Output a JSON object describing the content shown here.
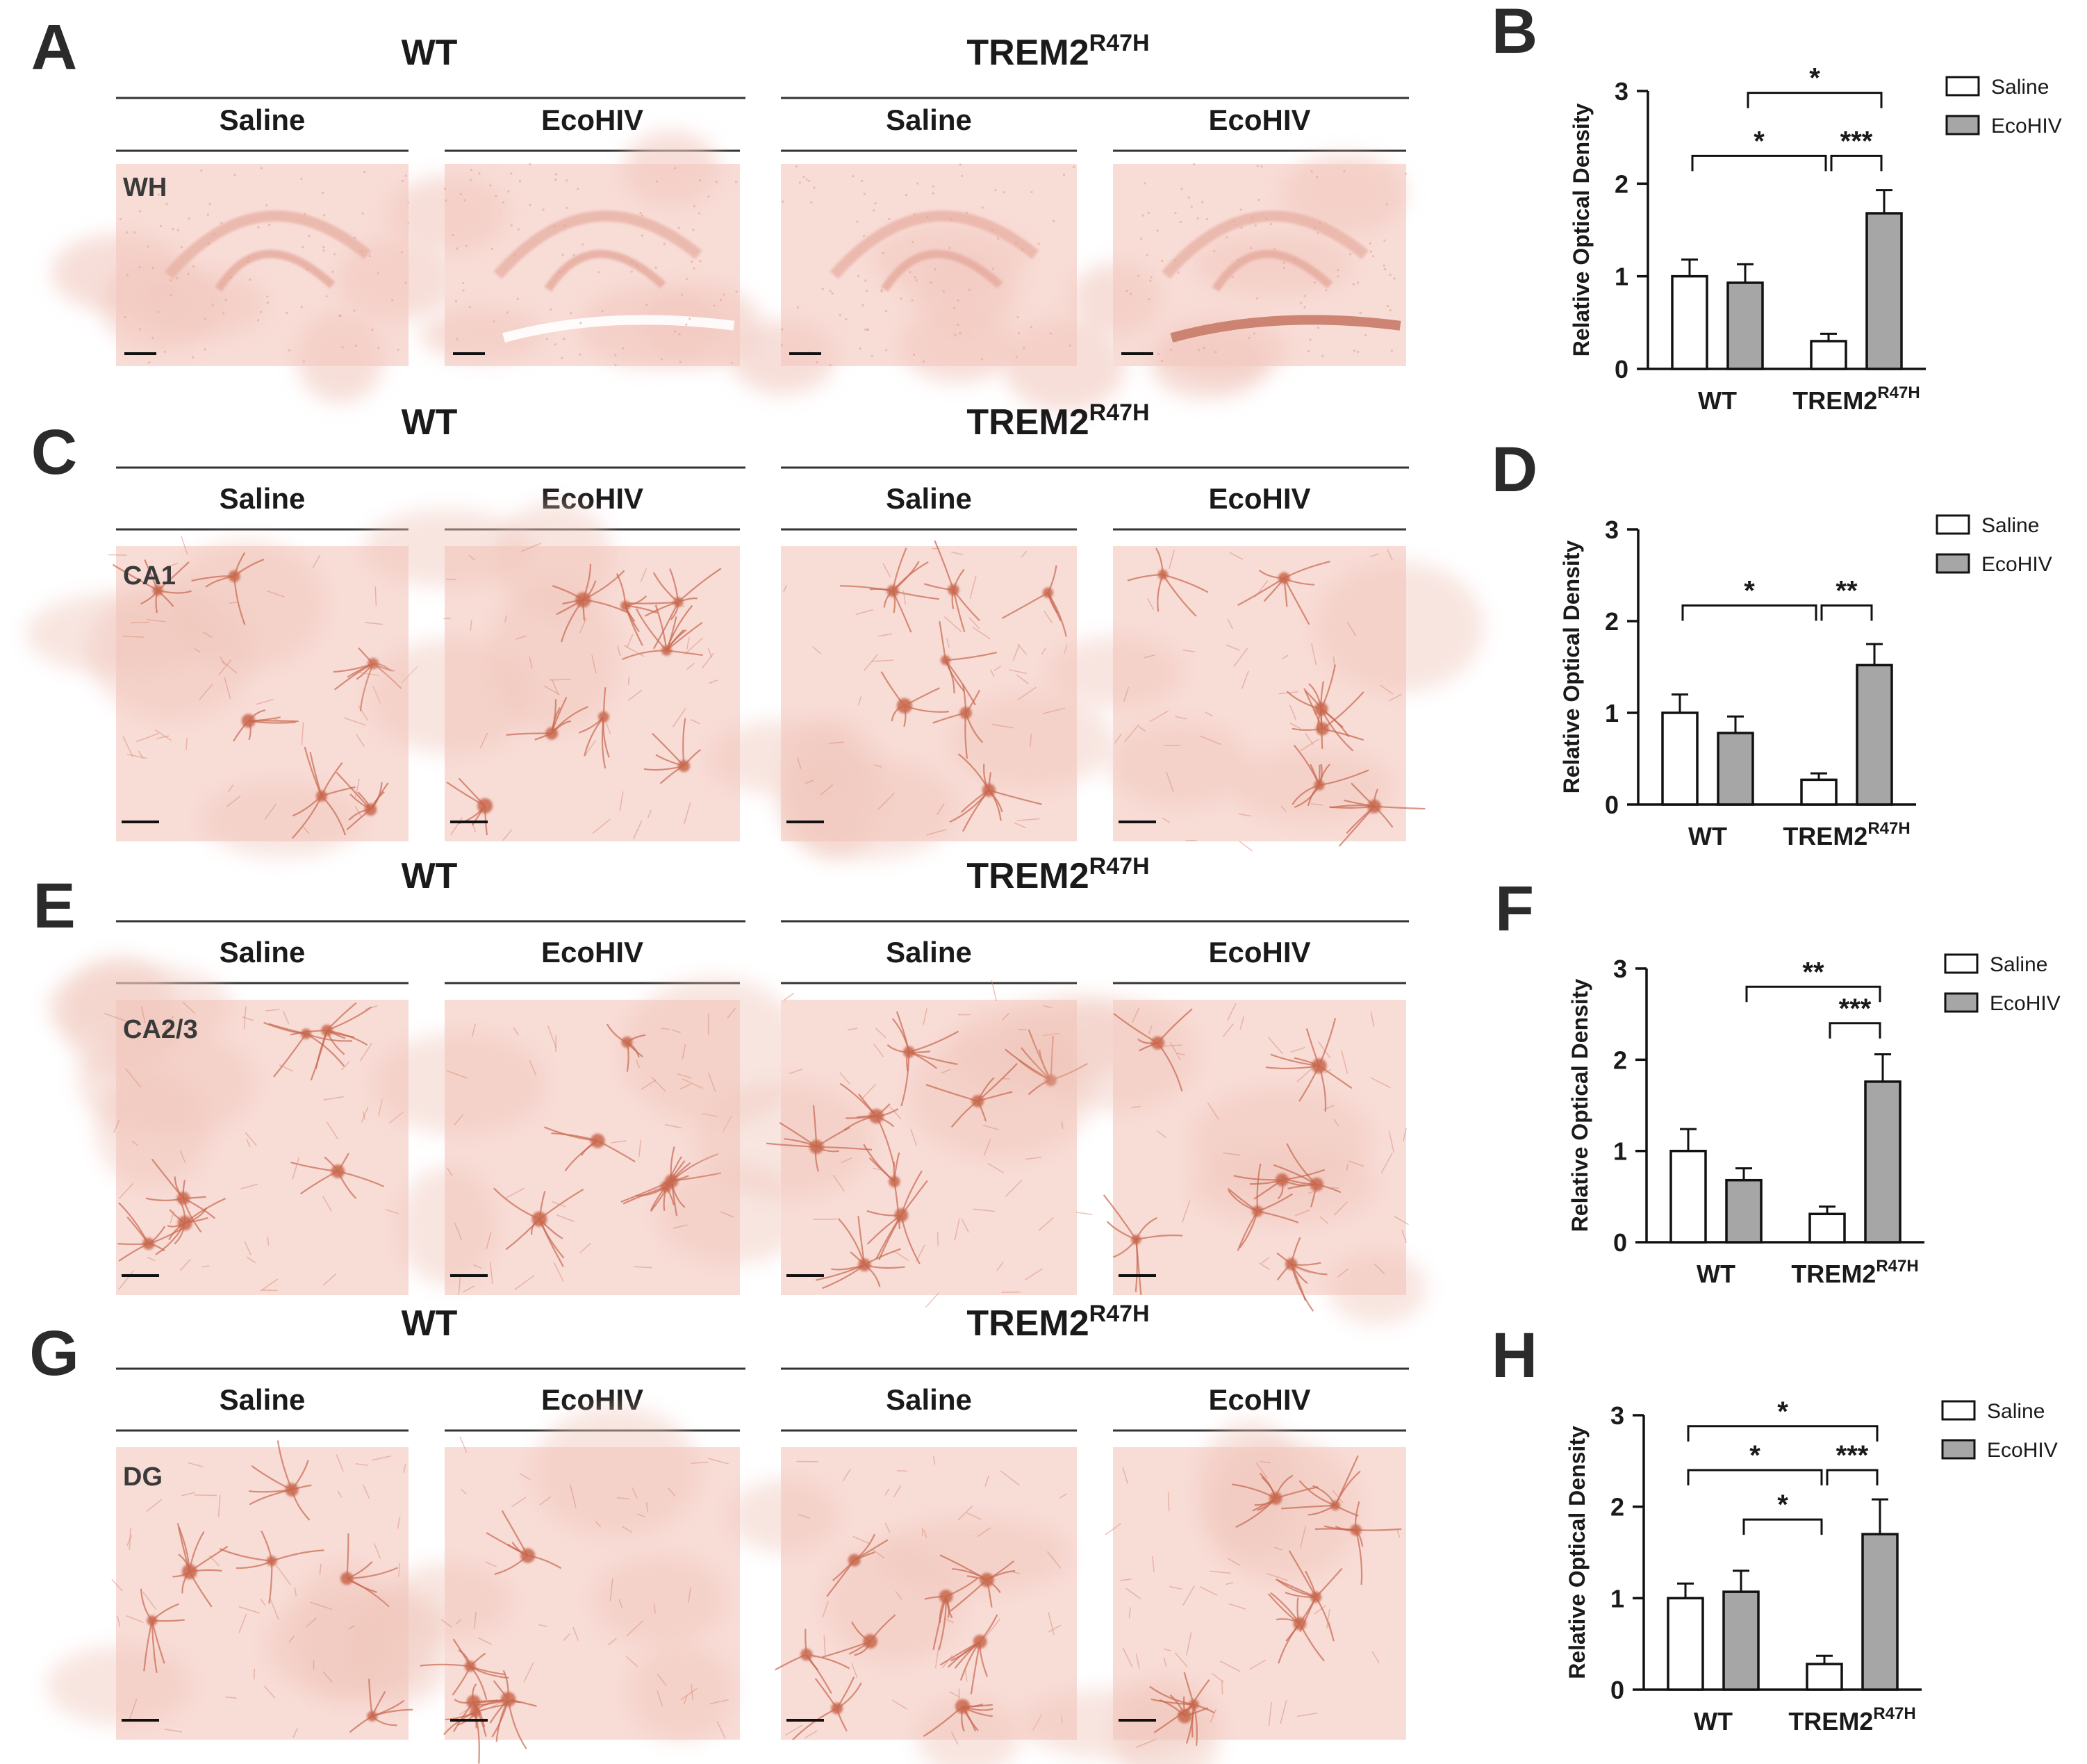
{
  "rows": [
    {
      "image_panel_letter": "A",
      "group_left": "WT",
      "group_right_base": "TREM2",
      "group_right_sup": "R47H",
      "conditions": [
        "Saline",
        "EcoHIV",
        "Saline",
        "EcoHIV"
      ],
      "region_label": "WH",
      "chart_panel_letter": "B"
    },
    {
      "image_panel_letter": "C",
      "group_left": "WT",
      "group_right_base": "TREM2",
      "group_right_sup": "R47H",
      "conditions": [
        "Saline",
        "EcoHIV",
        "Saline",
        "EcoHIV"
      ],
      "region_label": "CA1",
      "chart_panel_letter": "D"
    },
    {
      "image_panel_letter": "E",
      "group_left": "WT",
      "group_right_base": "TREM2",
      "group_right_sup": "R47H",
      "conditions": [
        "Saline",
        "EcoHIV",
        "Saline",
        "EcoHIV"
      ],
      "region_label": "CA2/3",
      "chart_panel_letter": "F"
    },
    {
      "image_panel_letter": "G",
      "group_left": "WT",
      "group_right_base": "TREM2",
      "group_right_sup": "R47H",
      "conditions": [
        "Saline",
        "EcoHIV",
        "Saline",
        "EcoHIV"
      ],
      "region_label": "DG",
      "chart_panel_letter": "H"
    }
  ],
  "colors": {
    "saline_bar": "#ffffff",
    "ecohiv_bar": "#a6a6a6",
    "tissue_base": "#f8dcd6",
    "stain": "#c8674e"
  },
  "chart_data": [
    {
      "type": "bar",
      "panel": "B",
      "categories": [
        "WT",
        "TREM2R47H"
      ],
      "category_labels": [
        {
          "base": "WT",
          "sup": ""
        },
        {
          "base": "TREM2",
          "sup": "R47H"
        }
      ],
      "series": [
        {
          "name": "Saline",
          "values": [
            1.0,
            0.3
          ],
          "errors": [
            0.18,
            0.08
          ]
        },
        {
          "name": "EcoHIV",
          "values": [
            0.93,
            1.68
          ],
          "errors": [
            0.2,
            0.25
          ]
        }
      ],
      "ylabel": "Relative Optical Density",
      "ylim": [
        0,
        3
      ],
      "yticks": [
        0,
        1,
        2,
        3
      ],
      "legend": "top-right",
      "significance": [
        {
          "from": [
            "EcoHIV",
            0
          ],
          "to": [
            "EcoHIV",
            1
          ],
          "label": "*",
          "level": 2.98
        },
        {
          "from": [
            "Saline",
            0
          ],
          "to": [
            "Saline",
            1
          ],
          "label": "*",
          "level": 2.3
        },
        {
          "from": [
            "Saline",
            1
          ],
          "to": [
            "EcoHIV",
            1
          ],
          "label": "***",
          "level": 2.3
        }
      ]
    },
    {
      "type": "bar",
      "panel": "D",
      "categories": [
        "WT",
        "TREM2R47H"
      ],
      "category_labels": [
        {
          "base": "WT",
          "sup": ""
        },
        {
          "base": "TREM2",
          "sup": "R47H"
        }
      ],
      "series": [
        {
          "name": "Saline",
          "values": [
            1.0,
            0.27
          ],
          "errors": [
            0.2,
            0.07
          ]
        },
        {
          "name": "EcoHIV",
          "values": [
            0.78,
            1.52
          ],
          "errors": [
            0.18,
            0.23
          ]
        }
      ],
      "ylabel": "Relative Optical Density",
      "ylim": [
        0,
        3
      ],
      "yticks": [
        0,
        1,
        2,
        3
      ],
      "legend": "top-right",
      "significance": [
        {
          "from": [
            "Saline",
            0
          ],
          "to": [
            "Saline",
            1
          ],
          "label": "*",
          "level": 2.17
        },
        {
          "from": [
            "Saline",
            1
          ],
          "to": [
            "EcoHIV",
            1
          ],
          "label": "**",
          "level": 2.17
        }
      ]
    },
    {
      "type": "bar",
      "panel": "F",
      "categories": [
        "WT",
        "TREM2R47H"
      ],
      "category_labels": [
        {
          "base": "WT",
          "sup": ""
        },
        {
          "base": "TREM2",
          "sup": "R47H"
        }
      ],
      "series": [
        {
          "name": "Saline",
          "values": [
            1.0,
            0.31
          ],
          "errors": [
            0.24,
            0.08
          ]
        },
        {
          "name": "EcoHIV",
          "values": [
            0.68,
            1.76
          ],
          "errors": [
            0.13,
            0.3
          ]
        }
      ],
      "ylabel": "Relative Optical Density",
      "ylim": [
        0,
        3
      ],
      "yticks": [
        0,
        1,
        2,
        3
      ],
      "legend": "top-right",
      "significance": [
        {
          "from": [
            "EcoHIV",
            0
          ],
          "to": [
            "EcoHIV",
            1
          ],
          "label": "**",
          "level": 2.8
        },
        {
          "from": [
            "Saline",
            1
          ],
          "to": [
            "EcoHIV",
            1
          ],
          "label": "***",
          "level": 2.4
        }
      ]
    },
    {
      "type": "bar",
      "panel": "H",
      "categories": [
        "WT",
        "TREM2R47H"
      ],
      "category_labels": [
        {
          "base": "WT",
          "sup": ""
        },
        {
          "base": "TREM2",
          "sup": "R47H"
        }
      ],
      "series": [
        {
          "name": "Saline",
          "values": [
            1.0,
            0.28
          ],
          "errors": [
            0.16,
            0.09
          ]
        },
        {
          "name": "EcoHIV",
          "values": [
            1.07,
            1.7
          ],
          "errors": [
            0.23,
            0.38
          ]
        }
      ],
      "ylabel": "Relative Optical Density",
      "ylim": [
        0,
        3
      ],
      "yticks": [
        0,
        1,
        2,
        3
      ],
      "legend": "top-right",
      "significance": [
        {
          "from": [
            "Saline",
            0
          ],
          "to": [
            "EcoHIV",
            1
          ],
          "label": "*",
          "level": 2.88
        },
        {
          "from": [
            "Saline",
            0
          ],
          "to": [
            "Saline",
            1
          ],
          "label": "*",
          "level": 2.4
        },
        {
          "from": [
            "Saline",
            1
          ],
          "to": [
            "EcoHIV",
            1
          ],
          "label": "***",
          "level": 2.4
        },
        {
          "from": [
            "EcoHIV",
            0
          ],
          "to": [
            "Saline",
            1
          ],
          "label": "*",
          "level": 1.86
        }
      ]
    }
  ]
}
